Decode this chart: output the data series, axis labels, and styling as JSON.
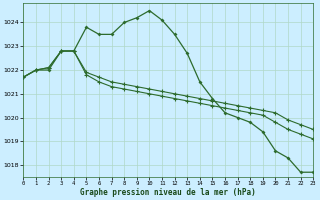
{
  "xlabel": "Graphe pression niveau de la mer (hPa)",
  "bg_color": "#cceeff",
  "grid_color": "#b0d8c8",
  "line_color": "#2d6b2d",
  "line1": [
    1021.7,
    1022.0,
    1022.0,
    1022.8,
    1022.8,
    1023.8,
    1023.5,
    1023.5,
    1024.0,
    1024.2,
    1024.5,
    1024.1,
    1023.5,
    1022.7,
    1021.5,
    1020.8,
    1020.2,
    1020.0,
    1019.8,
    1019.4,
    1018.6,
    1018.3,
    1017.7,
    1017.7
  ],
  "line2": [
    1021.7,
    1022.0,
    1022.1,
    1022.8,
    1022.8,
    1021.8,
    1021.5,
    1021.3,
    1021.2,
    1021.1,
    1021.0,
    1020.9,
    1020.8,
    1020.7,
    1020.6,
    1020.5,
    1020.4,
    1020.3,
    1020.2,
    1020.1,
    1019.8,
    1019.5,
    1019.3,
    1019.1
  ],
  "line3": [
    1021.7,
    1022.0,
    1022.1,
    1022.8,
    1022.8,
    1021.9,
    1021.7,
    1021.5,
    1021.4,
    1021.3,
    1021.2,
    1021.1,
    1021.0,
    1020.9,
    1020.8,
    1020.7,
    1020.6,
    1020.5,
    1020.4,
    1020.3,
    1020.2,
    1019.9,
    1019.7,
    1019.5
  ],
  "yticks": [
    1018,
    1019,
    1020,
    1021,
    1022,
    1023,
    1024
  ],
  "xticks": [
    0,
    1,
    2,
    3,
    4,
    5,
    6,
    7,
    8,
    9,
    10,
    11,
    12,
    13,
    14,
    15,
    16,
    17,
    18,
    19,
    20,
    21,
    22,
    23
  ],
  "ylim": [
    1017.5,
    1024.8
  ],
  "xlim": [
    0,
    23
  ]
}
